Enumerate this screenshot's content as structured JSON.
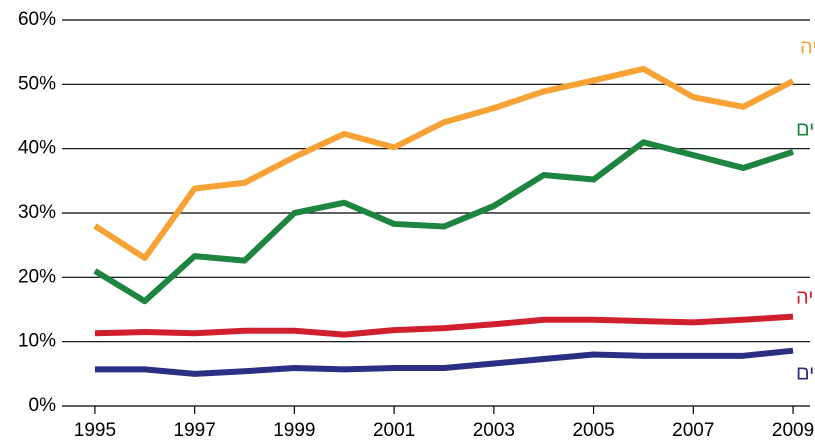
{
  "chart_data": {
    "type": "line",
    "x": [
      1995,
      1996,
      1997,
      1998,
      1999,
      2000,
      2001,
      2002,
      2003,
      2004,
      2005,
      2006,
      2007,
      2008,
      2009
    ],
    "series": [
      {
        "name": "ערבים – כל האוכלוסייה",
        "color": "#f7a234",
        "values": [
          28,
          23,
          33.8,
          34.7,
          38.7,
          42.3,
          40.2,
          44.1,
          46.3,
          48.9,
          50.6,
          52.4,
          48,
          46.5,
          50.5
        ]
      },
      {
        "name": "ערבים – עובדים",
        "color": "#1e8540",
        "values": [
          21,
          16.3,
          23.3,
          22.6,
          30,
          31.6,
          28.3,
          27.9,
          31.1,
          35.9,
          35.2,
          41,
          39,
          37,
          39.5
        ]
      },
      {
        "name": "יהודים – כל האוכלוסייה",
        "color": "#d0202e",
        "values": [
          11.3,
          11.5,
          11.3,
          11.7,
          11.7,
          11.1,
          11.8,
          12.1,
          12.7,
          13.4,
          13.4,
          13.2,
          13,
          13.4,
          13.9
        ]
      },
      {
        "name": "יהודים – עובדים",
        "color": "#2b2f84",
        "values": [
          5.7,
          5.7,
          5,
          5.4,
          5.9,
          5.7,
          5.9,
          5.9,
          6.6,
          7.3,
          8,
          7.8,
          7.8,
          7.8,
          8.6
        ]
      }
    ],
    "xlim": [
      1994.34,
      2009.34
    ],
    "xticks": [
      1995,
      1997,
      1999,
      2001,
      2003,
      2005,
      2007,
      2009
    ],
    "ylim": [
      0,
      60
    ],
    "yticks": [
      {
        "value": 0,
        "label": "0%"
      },
      {
        "value": 10,
        "label": "10%"
      },
      {
        "value": 20,
        "label": "20%"
      },
      {
        "value": 30,
        "label": "30%"
      },
      {
        "value": 40,
        "label": "40%"
      },
      {
        "value": 50,
        "label": "50%"
      },
      {
        "value": 60,
        "label": "60%"
      }
    ],
    "grid": true
  }
}
